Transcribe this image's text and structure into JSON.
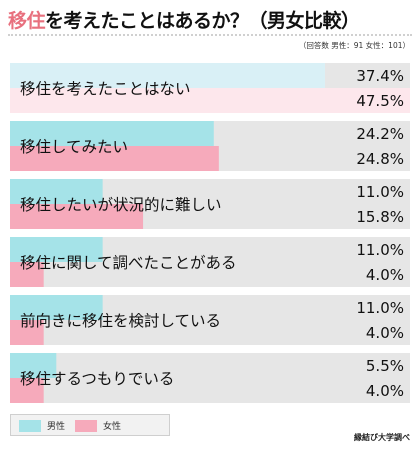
{
  "header": {
    "title_accent": "移住",
    "title_rest": "を考えたことはあるか？（男女比較）",
    "note": "（回答数 男性：91 女性：101）"
  },
  "legend": {
    "male": "男性",
    "female": "女性"
  },
  "source": "縁結び大学調べ",
  "colors": {
    "male": "#a5e3e8",
    "male_high": "#d9f0f6",
    "female": "#f6aabb",
    "female_high": "#fde7ec",
    "track": "#e6e6e6",
    "accent": "#e8707e"
  },
  "chart_data": {
    "type": "bar",
    "orientation": "horizontal",
    "categories": [
      "移住を考えたことはない",
      "移住してみたい",
      "移住したいが状況的に難しい",
      "移住に関して調べたことがある",
      "前向きに移住を検討している",
      "移住するつもりでいる"
    ],
    "series": [
      {
        "name": "男性",
        "values": [
          37.4,
          24.2,
          11.0,
          11.0,
          11.0,
          5.5
        ],
        "labels": [
          "37.4%",
          "24.2%",
          "11.0%",
          "11.0%",
          "11.0%",
          "5.5%"
        ]
      },
      {
        "name": "女性",
        "values": [
          47.5,
          24.8,
          15.8,
          4.0,
          4.0,
          4.0
        ],
        "labels": [
          "47.5%",
          "24.8%",
          "15.8%",
          "4.0%",
          "4.0%",
          "4.0%"
        ]
      }
    ],
    "xlim": [
      0,
      47.5
    ],
    "legend_position": "bottom-left"
  }
}
